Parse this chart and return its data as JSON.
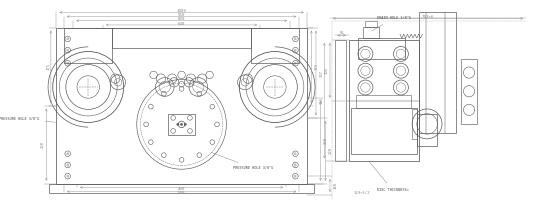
{
  "bg_color": "#ffffff",
  "line_color": "#5a5a5a",
  "line_color_mid": "#7a7a7a",
  "line_color_light": "#aaaaaa",
  "dim_color": "#888888",
  "text_color": "#444444",
  "lw_main": 0.6,
  "lw_med": 0.45,
  "lw_thin": 0.3,
  "lw_dim": 0.35,
  "left": {
    "dim_top": [
      "1000",
      "950",
      "820",
      "640"
    ],
    "dim_bot": [
      "440",
      "500"
    ],
    "dim_right": [
      "175",
      "307",
      "260",
      "220",
      "148"
    ],
    "ann1": "PRESSURE HOLE 3/8\"G",
    "ann2": "PRESSURE HOLE 3/8\"G"
  },
  "right": {
    "dim_top": "703+6",
    "dim_h1": "55",
    "dim_v1": "305",
    "dim_v2": "355",
    "dim_bot": "159+6/2",
    "ann1": "DRAIN HOLE 3/8\"G",
    "ann2": "DISC THICKNESS="
  }
}
